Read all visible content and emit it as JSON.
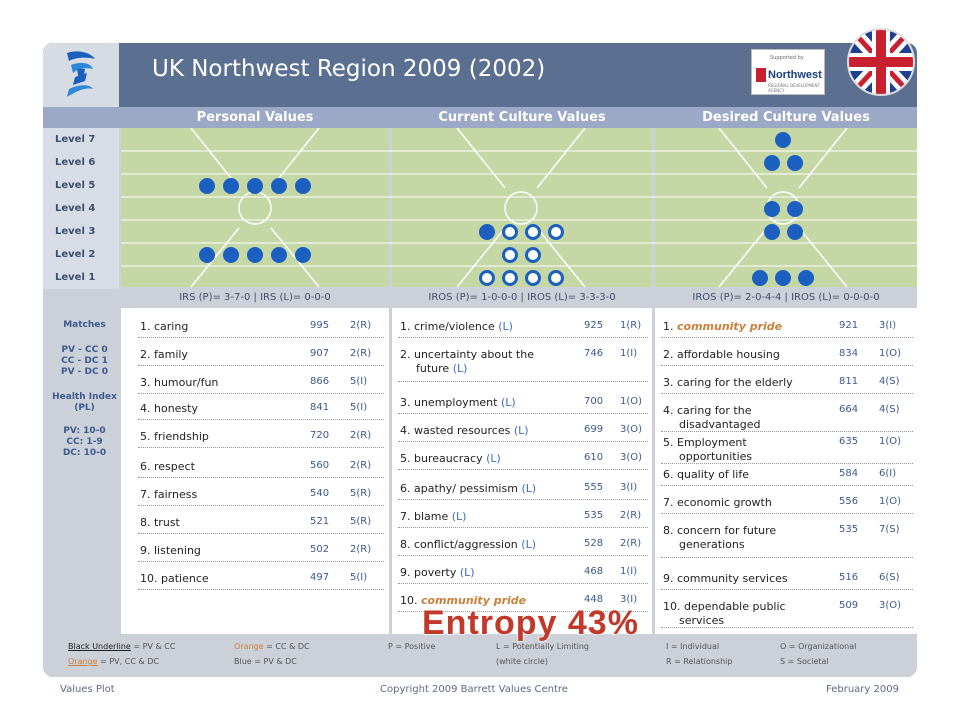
{
  "header": {
    "title": "UK Northwest Region 2009 (2002)"
  },
  "sponsor": {
    "top_text": "Supported by",
    "name": "Northwest",
    "sub": "REGIONAL DEVELOPMENT AGENCY"
  },
  "columns": {
    "personal": "Personal Values",
    "current": "Current Culture Values",
    "desired": "Desired Culture Values"
  },
  "levels": [
    "Level 7",
    "Level 6",
    "Level 5",
    "Level 4",
    "Level 3",
    "Level 2",
    "Level 1"
  ],
  "scores": {
    "personal": "IRS (P)= 3-7-0 | IRS (L)= 0-0-0",
    "current": "IROS (P)= 1-0-0-0 | IROS (L)= 3-3-3-0",
    "desired": "IROS (P)= 2-0-4-4 | IROS (L)= 0-0-0-0"
  },
  "chart_data": {
    "type": "table",
    "dots_per_level": {
      "personal": {
        "level5": 5,
        "level2": 5
      },
      "current": {
        "level3": {
          "positive": 1,
          "limiting": 3
        },
        "level2": {
          "positive": 0,
          "limiting": 2
        },
        "level1": {
          "positive": 0,
          "limiting": 4
        }
      },
      "desired": {
        "level7": 1,
        "level6": 2,
        "level4": 2,
        "level3": 2,
        "level1": 3
      }
    }
  },
  "personal_values": [
    {
      "text": "1. caring",
      "votes": "995",
      "code": "2(R)"
    },
    {
      "text": "2. family",
      "votes": "907",
      "code": "2(R)"
    },
    {
      "text": "3. humour/fun",
      "votes": "866",
      "code": "5(I)"
    },
    {
      "text": "4. honesty",
      "votes": "841",
      "code": "5(I)"
    },
    {
      "text": "5. friendship",
      "votes": "720",
      "code": "2(R)"
    },
    {
      "text": "6. respect",
      "votes": "560",
      "code": "2(R)"
    },
    {
      "text": "7. fairness",
      "votes": "540",
      "code": "5(R)"
    },
    {
      "text": "8. trust",
      "votes": "521",
      "code": "5(R)"
    },
    {
      "text": "9. listening",
      "votes": "502",
      "code": "2(R)"
    },
    {
      "text": "10. patience",
      "votes": "497",
      "code": "5(I)"
    }
  ],
  "current_values": [
    {
      "text": "1. crime/violence",
      "tag": "(L)",
      "votes": "925",
      "code": "1(R)"
    },
    {
      "text": "2. uncertainty about the",
      "text2": "future",
      "tag": "(L)",
      "votes": "746",
      "code": "1(I)"
    },
    {
      "text": "3. unemployment",
      "tag": "(L)",
      "votes": "700",
      "code": "1(O)"
    },
    {
      "text": "4. wasted resources",
      "tag": "(L)",
      "votes": "699",
      "code": "3(O)"
    },
    {
      "text": "5. bureaucracy",
      "tag": "(L)",
      "votes": "610",
      "code": "3(O)"
    },
    {
      "text": "6. apathy/ pessimism",
      "tag": "(L)",
      "votes": "555",
      "code": "3(I)"
    },
    {
      "text": "7. blame",
      "tag": "(L)",
      "votes": "535",
      "code": "2(R)"
    },
    {
      "text": "8. conflict/aggression",
      "tag": "(L)",
      "votes": "528",
      "code": "2(R)"
    },
    {
      "text": "9. poverty",
      "tag": "(L)",
      "votes": "468",
      "code": "1(I)"
    },
    {
      "text": "10.",
      "orange": "community pride",
      "votes": "448",
      "code": "3(I)"
    }
  ],
  "desired_values": [
    {
      "text": "1.",
      "orange": "community pride",
      "votes": "921",
      "code": "3(I)"
    },
    {
      "text": "2. affordable housing",
      "votes": "834",
      "code": "1(O)"
    },
    {
      "text": "3. caring for the elderly",
      "votes": "811",
      "code": "4(S)"
    },
    {
      "text": "4. caring for the",
      "text2": "disadvantaged",
      "votes": "664",
      "code": "4(S)"
    },
    {
      "text": "5. Employment",
      "text2": "opportunities",
      "votes": "635",
      "code": "1(O)"
    },
    {
      "text": "6. quality of life",
      "votes": "584",
      "code": "6(I)"
    },
    {
      "text": "7. economic growth",
      "votes": "556",
      "code": "1(O)"
    },
    {
      "text": "8. concern for future",
      "text2": "generations",
      "votes": "535",
      "code": "7(S)"
    },
    {
      "text": "9. community services",
      "votes": "516",
      "code": "6(S)"
    },
    {
      "text": "10. dependable public",
      "text2": "services",
      "votes": "509",
      "code": "3(O)"
    }
  ],
  "matches": {
    "title": "Matches",
    "rows": [
      "PV - CC 0",
      "CC - DC 1",
      "PV - DC 0"
    ],
    "health_title": "Health Index (PL)",
    "health_rows": [
      "PV: 10-0",
      "CC: 1-9",
      "DC: 10-0"
    ]
  },
  "legend": {
    "black_underline": "Black Underline",
    "black_underline_rest": "= PV & CC",
    "orange_cc_dc": "Orange",
    "orange_cc_dc_rest": "= CC & DC",
    "p_positive": "P = Positive",
    "l_limiting": "L = Potentially Limiting",
    "white_circle": "(white circle)",
    "i_individual": "I = Individual",
    "o_org": "O = Organizational",
    "orange_all": "Orange",
    "orange_all_rest": "= PV, CC & DC",
    "blue_pv_dc": "Blue = PV & DC",
    "r_rel": "R = Relationship",
    "s_soc": "S = Societal"
  },
  "entropy": "Entropy 43%",
  "footer": {
    "left": "Values Plot",
    "center": "Copyright 2009 Barrett Values Centre",
    "right": "February 2009"
  },
  "colors": {
    "header": "#5b7090",
    "panel_green": "#c5d7a5",
    "dot_blue": "#1b5fc0",
    "entropy_red": "#c0392b",
    "orange": "#c8813a"
  }
}
